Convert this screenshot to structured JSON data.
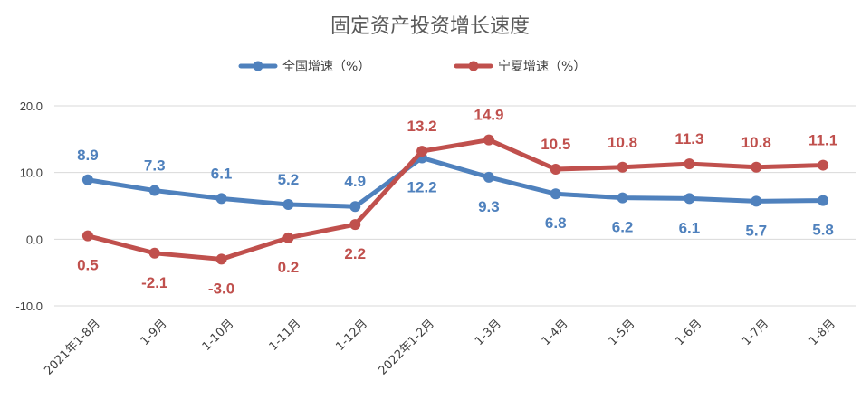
{
  "chart_data": {
    "type": "line",
    "title": "固定资产投资增长速度",
    "xlabel": "",
    "ylabel": "",
    "categories": [
      "2021年1-8月",
      "1-9月",
      "1-10月",
      "1-11月",
      "1-12月",
      "2022年1-2月",
      "1-3月",
      "1-4月",
      "1-5月",
      "1-6月",
      "1-7月",
      "1-8月"
    ],
    "yticks": [
      "20.0",
      "10.0",
      "0.0",
      "-10.0"
    ],
    "ylim": [
      -10,
      20
    ],
    "grid": true,
    "legend_position": "top",
    "series": [
      {
        "name": "全国增速（%）",
        "color": "#4F81BD",
        "values": [
          8.9,
          7.3,
          6.1,
          5.2,
          4.9,
          12.2,
          9.3,
          6.8,
          6.2,
          6.1,
          5.7,
          5.8
        ],
        "labels": [
          "8.9",
          "7.3",
          "6.1",
          "5.2",
          "4.9",
          "12.2",
          "9.3",
          "6.8",
          "6.2",
          "6.1",
          "5.7",
          "5.8"
        ]
      },
      {
        "name": "宁夏增速（%）",
        "color": "#C0504D",
        "values": [
          0.5,
          -2.1,
          -3.0,
          0.2,
          2.2,
          13.2,
          14.9,
          10.5,
          10.8,
          11.3,
          10.8,
          11.1
        ],
        "labels": [
          "0.5",
          "-2.1",
          "-3.0",
          "0.2",
          "2.2",
          "13.2",
          "14.9",
          "10.5",
          "10.8",
          "11.3",
          "10.8",
          "11.1"
        ]
      }
    ]
  }
}
